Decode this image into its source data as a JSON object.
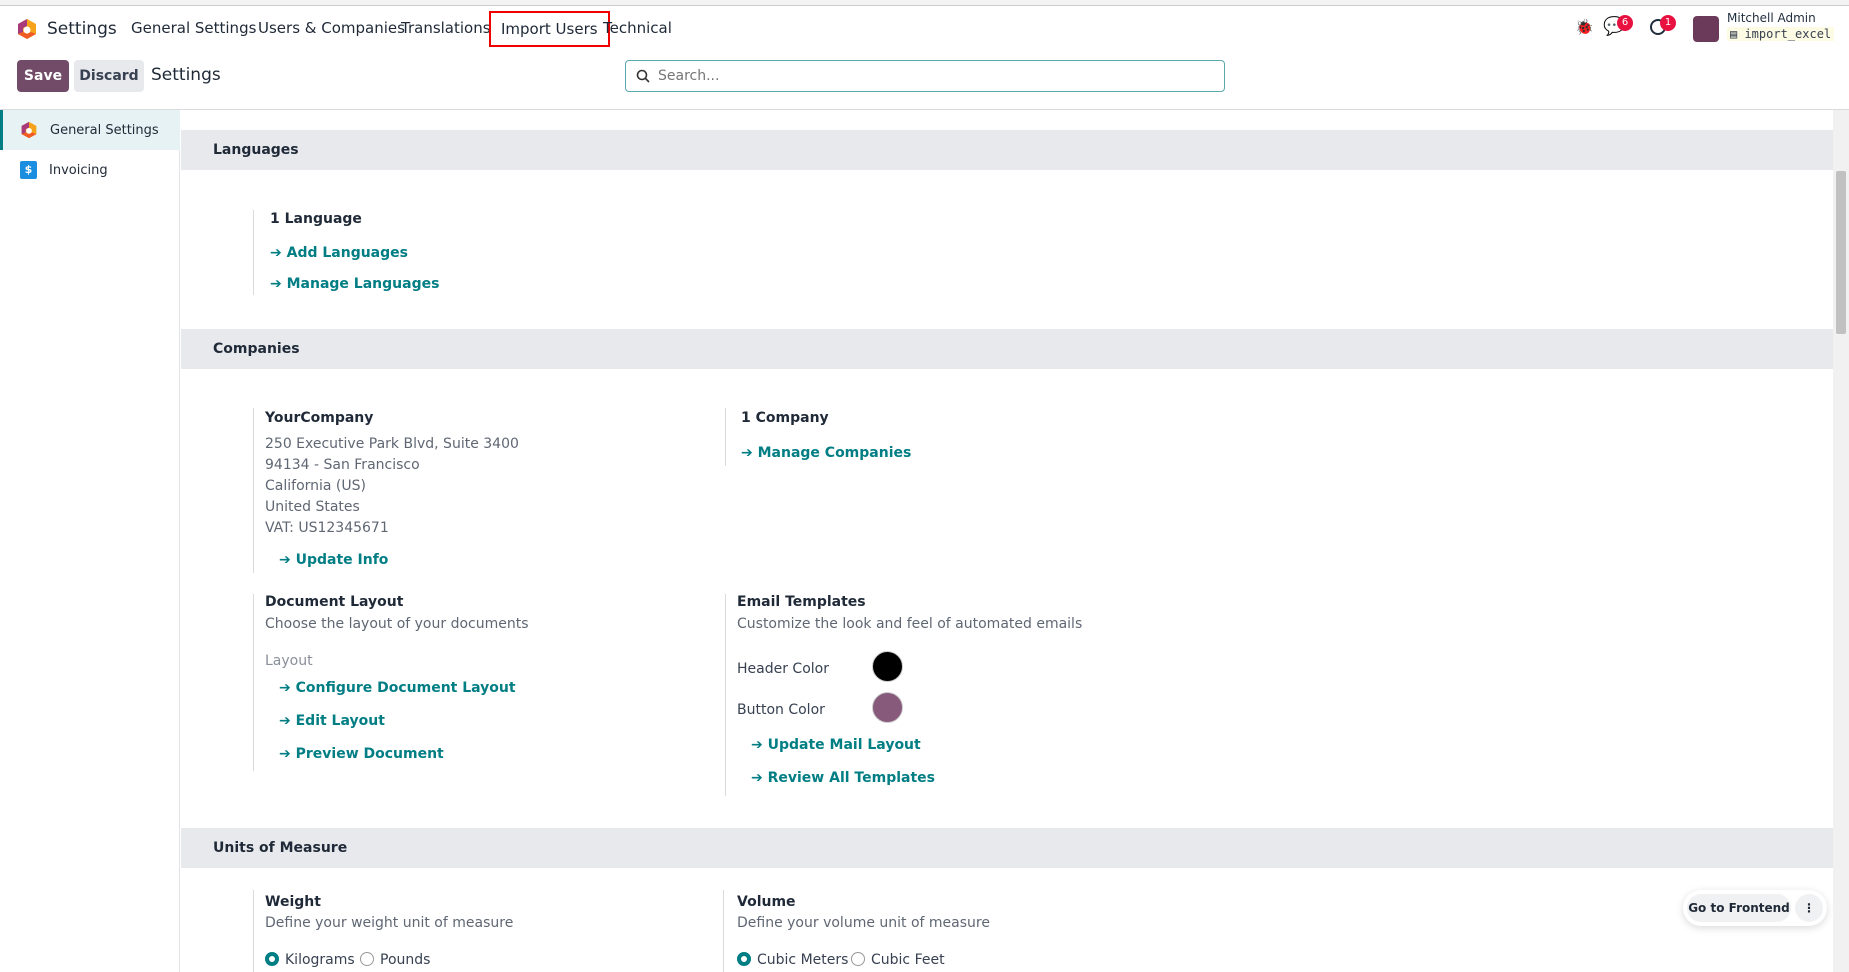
{
  "nav": {
    "app": "Settings",
    "items": [
      "General Settings",
      "Users & Companies",
      "Translations",
      "Import Users",
      "Technical"
    ]
  },
  "user": {
    "name": "Mitchell Admin",
    "db": "import_excel",
    "messages_count": "6",
    "activities_count": "1"
  },
  "control": {
    "save": "Save",
    "discard": "Discard",
    "title": "Settings",
    "search_placeholder": "Search..."
  },
  "sidebar": [
    {
      "label": "General Settings",
      "active": true
    },
    {
      "label": "Invoicing"
    }
  ],
  "languages": {
    "title": "Languages",
    "count": "1 Language",
    "links": [
      "Add Languages",
      "Manage Languages"
    ]
  },
  "companies": {
    "title": "Companies",
    "name": "YourCompany",
    "address": [
      "250 Executive Park Blvd, Suite 3400",
      "94134 - San Francisco",
      "California (US)",
      "United States",
      "VAT:  US12345671"
    ],
    "update": "Update Info",
    "count": "1 Company",
    "manage": "Manage Companies",
    "doc_title": "Document Layout",
    "doc_desc": "Choose the layout of your documents",
    "layout_label": "Layout",
    "doc_links": [
      "Configure Document Layout",
      "Edit Layout",
      "Preview Document"
    ],
    "email_title": "Email Templates",
    "email_desc": "Customize the look and feel of automated emails",
    "header_color_label": "Header Color",
    "header_color": "#000000",
    "button_color_label": "Button Color",
    "button_color": "#875a7b",
    "email_links": [
      "Update Mail Layout",
      "Review All Templates"
    ]
  },
  "uom": {
    "title": "Units of Measure",
    "weight_title": "Weight",
    "weight_desc": "Define your weight unit of measure",
    "weight_options": [
      "Kilograms",
      "Pounds"
    ],
    "weight_selected": "Kilograms",
    "volume_title": "Volume",
    "volume_desc": "Define your volume unit of measure",
    "volume_options": [
      "Cubic Meters",
      "Cubic Feet"
    ],
    "volume_selected": "Cubic Meters"
  },
  "frontend": "Go to Frontend"
}
